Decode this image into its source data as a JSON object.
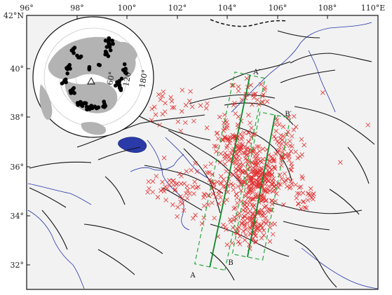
{
  "map": {
    "longitude_ticks": [
      "96°",
      "98°",
      "100°",
      "102°",
      "104°",
      "106°",
      "108°",
      "110°E"
    ],
    "latitude_ticks": [
      "42°N",
      "40°",
      "38°",
      "36°",
      "34°",
      "32°"
    ],
    "extent": {
      "lon_min": 96,
      "lon_max": 110,
      "lat_min": 31,
      "lat_max": 42
    },
    "colors": {
      "background": "#f2f2f2",
      "faults": "#111111",
      "rivers": "#2233aa",
      "lake": "#2a3aa8",
      "event_markers": "#e23030",
      "profile_boxes": "#29a83a",
      "profile_lines": "#0d8a2a"
    },
    "event_marker": "cross",
    "profiles": [
      {
        "start_label": "A",
        "end_label": "A′",
        "start": [
          103.3,
          31.9
        ],
        "end": [
          104.9,
          39.6
        ]
      },
      {
        "start_label": "B",
        "end_label": "B′",
        "start": [
          104.8,
          32.3
        ],
        "end": [
          105.9,
          38.0
        ]
      }
    ]
  },
  "inset": {
    "projection": "azimuthal",
    "ring_labels": [
      "60°",
      "120°",
      "180°"
    ],
    "station_marker": "triangle",
    "event_marker": "filled-circle"
  }
}
